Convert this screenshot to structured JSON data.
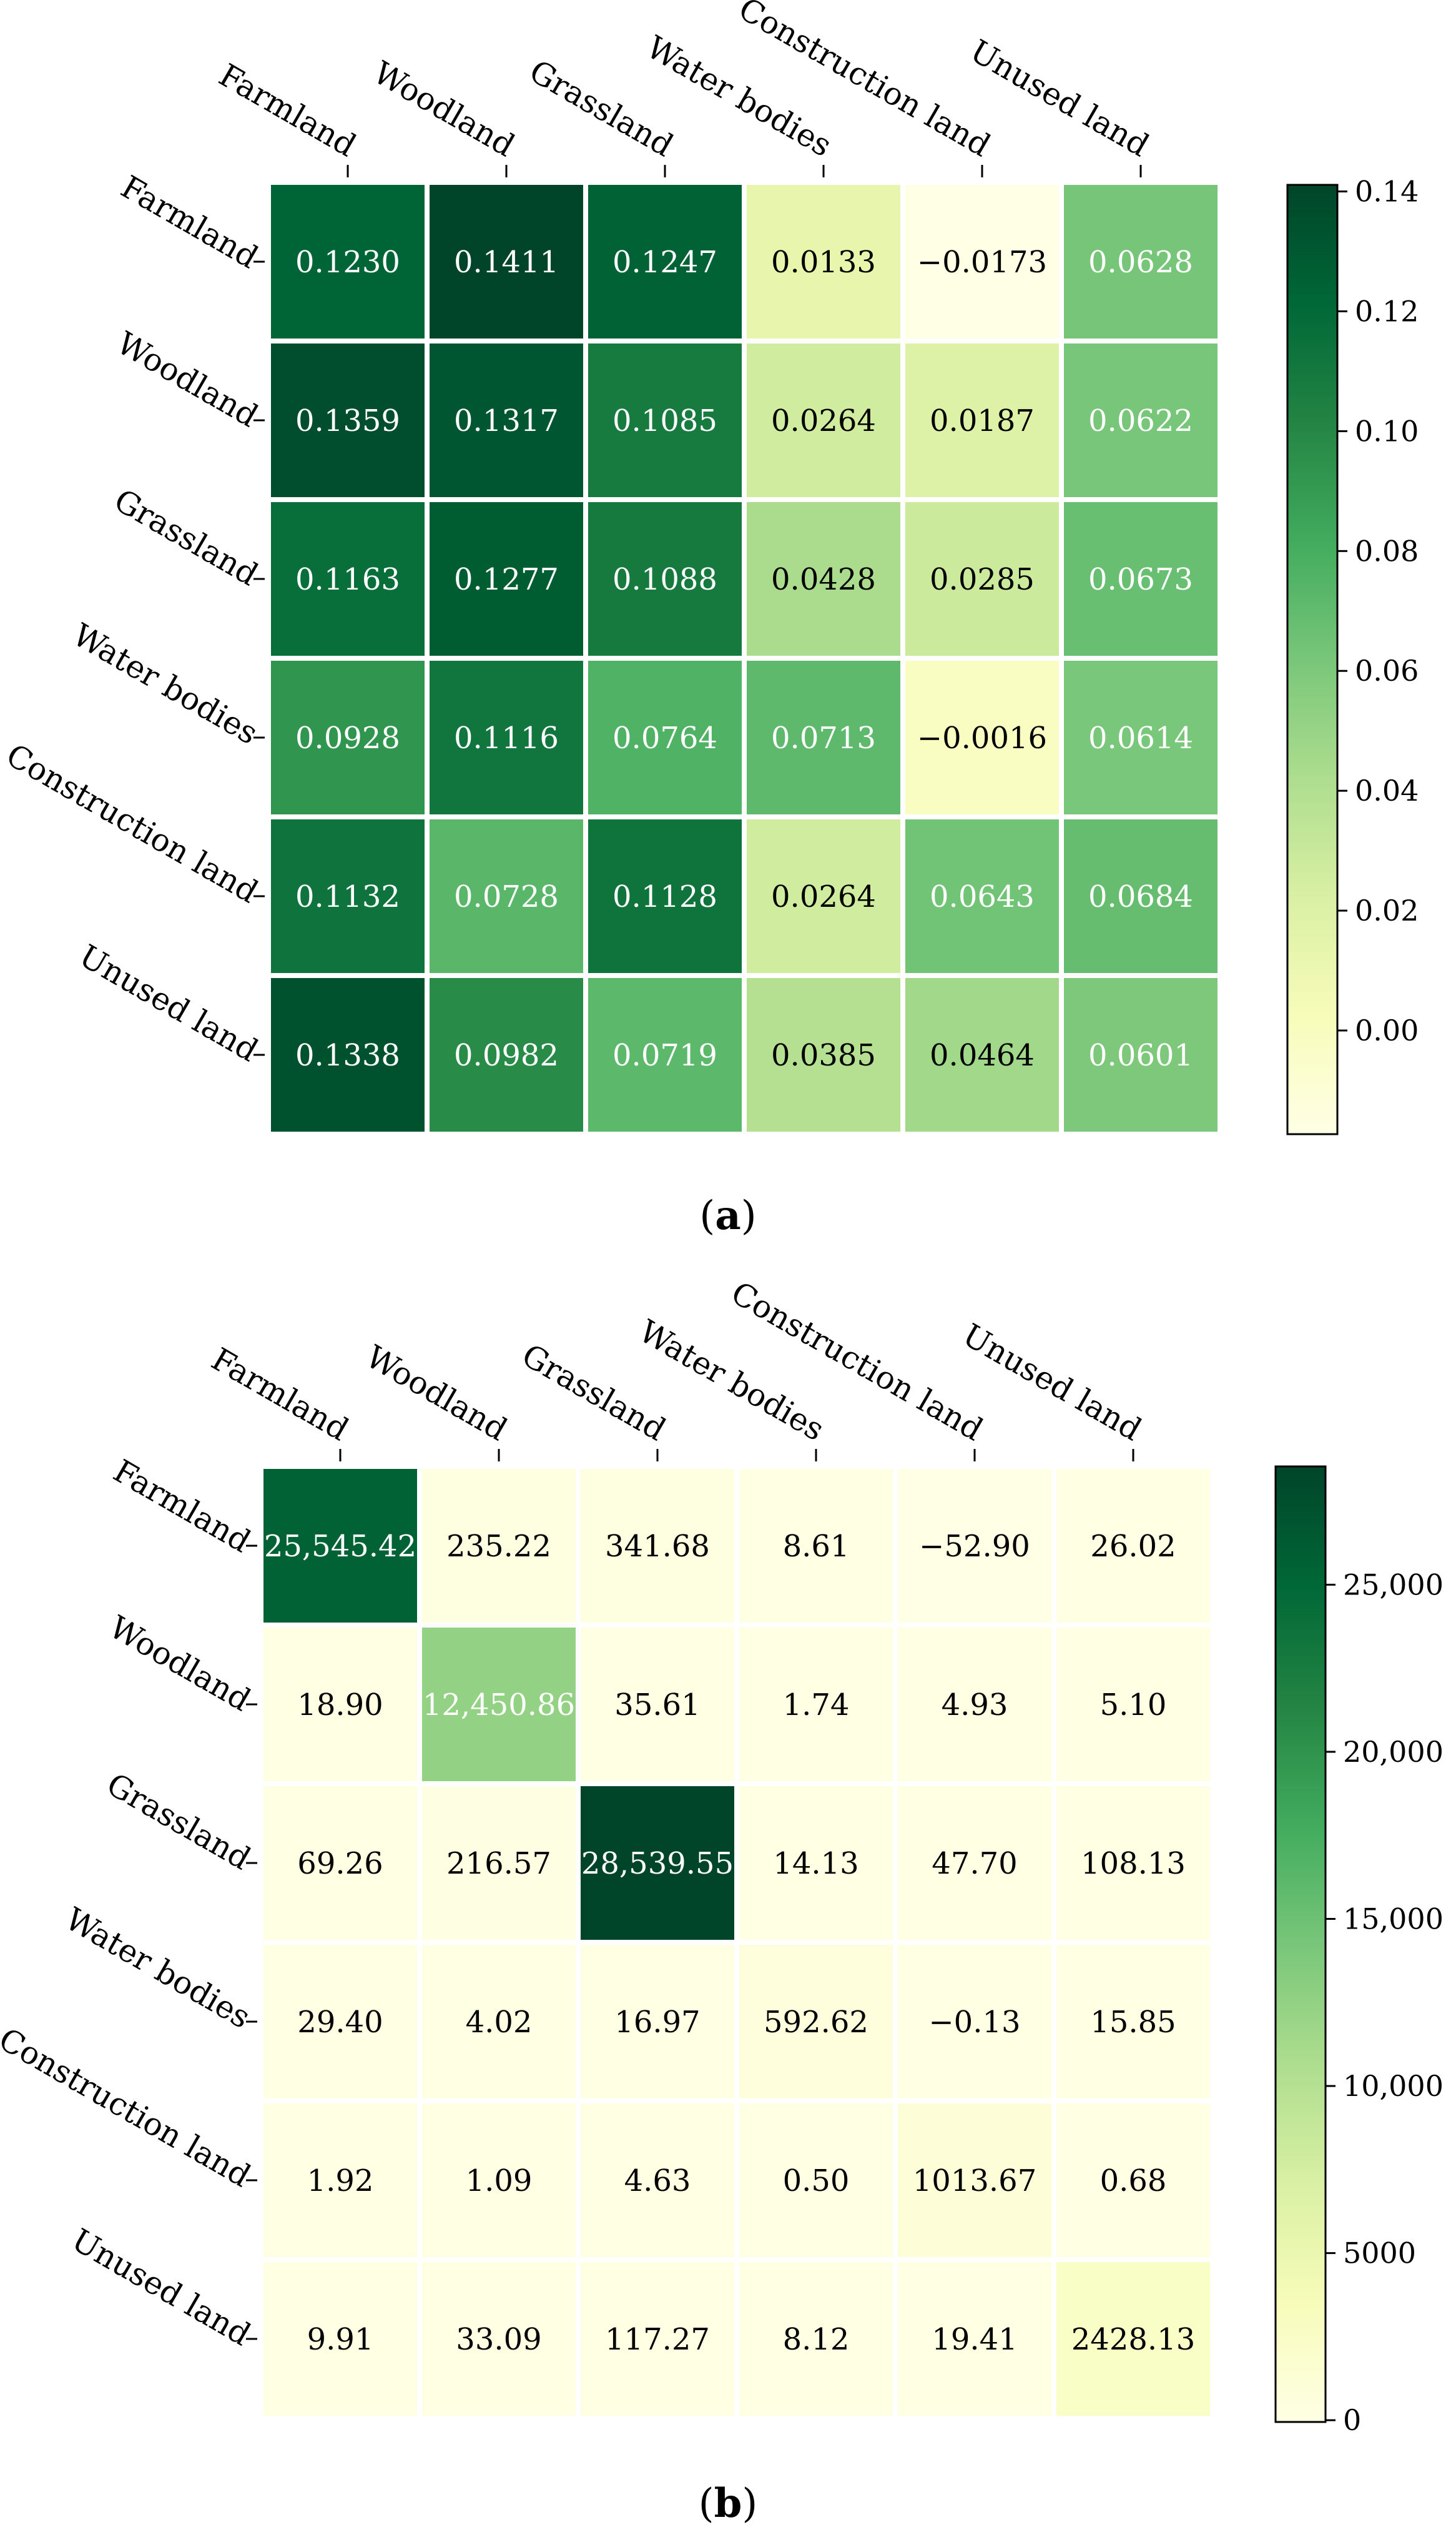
{
  "chart_data": [
    {
      "type": "heatmap",
      "panel_label": "a",
      "rows": [
        "Farmland",
        "Woodland",
        "Grassland",
        "Water bodies",
        "Construction land",
        "Unused land"
      ],
      "columns": [
        "Farmland",
        "Woodland",
        "Grassland",
        "Water bodies",
        "Construction land",
        "Unused land"
      ],
      "values": [
        [
          0.123,
          0.1411,
          0.1247,
          0.0133,
          -0.0173,
          0.0628
        ],
        [
          0.1359,
          0.1317,
          0.1085,
          0.0264,
          0.0187,
          0.0622
        ],
        [
          0.1163,
          0.1277,
          0.1088,
          0.0428,
          0.0285,
          0.0673
        ],
        [
          0.0928,
          0.1116,
          0.0764,
          0.0713,
          -0.0016,
          0.0614
        ],
        [
          0.1132,
          0.0728,
          0.1128,
          0.0264,
          0.0643,
          0.0684
        ],
        [
          0.1338,
          0.0982,
          0.0719,
          0.0385,
          0.0464,
          0.0601
        ]
      ],
      "labels": [
        [
          "0.1230",
          "0.1411",
          "0.1247",
          "0.0133",
          "−0.0173",
          "0.0628"
        ],
        [
          "0.1359",
          "0.1317",
          "0.1085",
          "0.0264",
          "0.0187",
          "0.0622"
        ],
        [
          "0.1163",
          "0.1277",
          "0.1088",
          "0.0428",
          "0.0285",
          "0.0673"
        ],
        [
          "0.0928",
          "0.1116",
          "0.0764",
          "0.0713",
          "−0.0016",
          "0.0614"
        ],
        [
          "0.1132",
          "0.0728",
          "0.1128",
          "0.0264",
          "0.0643",
          "0.0684"
        ],
        [
          "0.1338",
          "0.0982",
          "0.0719",
          "0.0385",
          "0.0464",
          "0.0601"
        ]
      ],
      "colorbar": {
        "min": -0.0173,
        "max": 0.1411,
        "ticks": [
          0.0,
          0.02,
          0.04,
          0.06,
          0.08,
          0.1,
          0.12,
          0.14
        ],
        "tick_labels": [
          "0.00",
          "0.02",
          "0.04",
          "0.06",
          "0.08",
          "0.10",
          "0.12",
          "0.14"
        ]
      },
      "colormap": "Greens"
    },
    {
      "type": "heatmap",
      "panel_label": "b",
      "rows": [
        "Farmland",
        "Woodland",
        "Grassland",
        "Water bodies",
        "Construction land",
        "Unused land"
      ],
      "columns": [
        "Farmland",
        "Woodland",
        "Grassland",
        "Water bodies",
        "Construction land",
        "Unused land"
      ],
      "values": [
        [
          25545.42,
          235.22,
          341.68,
          8.61,
          -52.9,
          26.02
        ],
        [
          18.9,
          12450.86,
          35.61,
          1.74,
          4.93,
          5.1
        ],
        [
          69.26,
          216.57,
          28539.55,
          14.13,
          47.7,
          108.13
        ],
        [
          29.4,
          4.02,
          16.97,
          592.62,
          -0.13,
          15.85
        ],
        [
          1.92,
          1.09,
          4.63,
          0.5,
          1013.67,
          0.68
        ],
        [
          9.91,
          33.09,
          117.27,
          8.12,
          19.41,
          2428.13
        ]
      ],
      "labels": [
        [
          "25,545.42",
          "235.22",
          "341.68",
          "8.61",
          "−52.90",
          "26.02"
        ],
        [
          "18.90",
          "12,450.86",
          "35.61",
          "1.74",
          "4.93",
          "5.10"
        ],
        [
          "69.26",
          "216.57",
          "28,539.55",
          "14.13",
          "47.70",
          "108.13"
        ],
        [
          "29.40",
          "4.02",
          "16.97",
          "592.62",
          "−0.13",
          "15.85"
        ],
        [
          "1.92",
          "1.09",
          "4.63",
          "0.50",
          "1013.67",
          "0.68"
        ],
        [
          "9.91",
          "33.09",
          "117.27",
          "8.12",
          "19.41",
          "2428.13"
        ]
      ],
      "colorbar": {
        "min": -52.9,
        "max": 28539.55,
        "ticks": [
          0,
          5000,
          10000,
          15000,
          20000,
          25000
        ],
        "tick_labels": [
          "0",
          "5000",
          "10,000",
          "15,000",
          "20,000",
          "25,000"
        ]
      },
      "colormap": "Greens"
    }
  ],
  "colormap_stops": [
    "#ffffe5",
    "#f7fcb9",
    "#d9f0a3",
    "#addd8e",
    "#78c679",
    "#41ab5d",
    "#238443",
    "#006837",
    "#004529"
  ],
  "captions": {
    "a": {
      "open": "(",
      "letter": "a",
      "close": ")"
    },
    "b": {
      "open": "(",
      "letter": "b",
      "close": ")"
    }
  }
}
